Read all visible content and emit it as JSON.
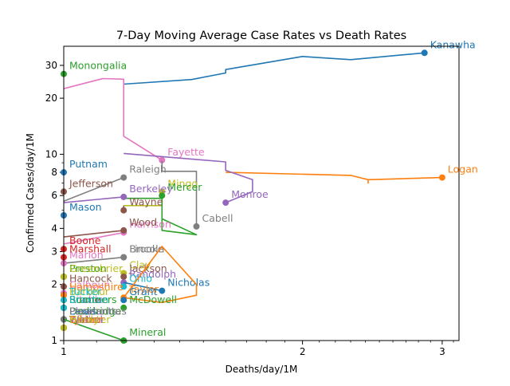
{
  "chart_data": {
    "type": "line",
    "title": "7-Day Moving Average Case Rates vs Death Rates",
    "xlabel": "Deaths/day/1M",
    "ylabel": "Confirmed Cases/day/1M",
    "xscale": "log",
    "yscale": "log",
    "xlim": [
      1,
      3.15
    ],
    "ylim": [
      1,
      38
    ],
    "xticks": [
      1,
      2,
      3
    ],
    "xtick_labels": [
      "1",
      "2",
      "3"
    ],
    "yticks": [
      1,
      2,
      3,
      4,
      6,
      8,
      10,
      20,
      30
    ],
    "ytick_labels": [
      "1",
      "2",
      "3",
      "4",
      "6",
      "8",
      "10",
      "20",
      "30"
    ],
    "grid": false,
    "legend": "none",
    "series": [
      {
        "name": "Kanawha",
        "color": "#1f77b4",
        "points": [
          [
            1.19,
            23.8
          ],
          [
            1.45,
            25.2
          ],
          [
            1.6,
            27.3
          ],
          [
            1.6,
            28.5
          ],
          [
            2.0,
            33.5
          ],
          [
            2.3,
            32.2
          ],
          [
            2.85,
            35.0
          ]
        ]
      },
      {
        "name": "Logan",
        "color": "#ff7f0e",
        "points": [
          [
            1.6,
            8.0
          ],
          [
            2.3,
            7.7
          ],
          [
            2.42,
            7.3
          ],
          [
            2.42,
            7.0
          ],
          [
            2.42,
            7.3
          ],
          [
            3.0,
            7.5
          ]
        ]
      },
      {
        "name": "Monongalia",
        "color": "#2ca02c",
        "points": [
          [
            1.0,
            27.0
          ]
        ]
      },
      {
        "name": "Fayette",
        "color": "#e377c2",
        "points": [
          [
            1.0,
            22.5
          ],
          [
            1.12,
            25.5
          ],
          [
            1.19,
            25.3
          ],
          [
            1.19,
            12.5
          ],
          [
            1.33,
            9.3
          ]
        ]
      },
      {
        "name": "Cabell",
        "color": "#7f7f7f",
        "points": [
          [
            1.33,
            9.2
          ],
          [
            1.33,
            8.1
          ],
          [
            1.47,
            8.1
          ],
          [
            1.47,
            4.1
          ]
        ]
      },
      {
        "name": "Monroe",
        "color": "#9467bd",
        "points": [
          [
            1.19,
            10.1
          ],
          [
            1.6,
            9.1
          ],
          [
            1.6,
            8.2
          ],
          [
            1.73,
            7.3
          ],
          [
            1.73,
            6.3
          ],
          [
            1.6,
            5.5
          ]
        ]
      },
      {
        "name": "Mingo",
        "color": "#bcbd22",
        "points": [
          [
            1.19,
            5.3
          ],
          [
            1.33,
            5.3
          ],
          [
            1.33,
            6.3
          ]
        ]
      },
      {
        "name": "Mercer",
        "color": "#2ca02c",
        "points": [
          [
            1.19,
            5.8
          ],
          [
            1.33,
            5.8
          ],
          [
            1.33,
            4.5
          ],
          [
            1.47,
            3.7
          ],
          [
            1.33,
            3.9
          ],
          [
            1.33,
            6.0
          ]
        ]
      },
      {
        "name": "Putnam",
        "color": "#1f77b4",
        "points": [
          [
            1.0,
            8.0
          ]
        ]
      },
      {
        "name": "Raleigh",
        "color": "#7f7f7f",
        "points": [
          [
            1.0,
            5.6
          ],
          [
            1.19,
            7.5
          ]
        ]
      },
      {
        "name": "Jefferson",
        "color": "#8c564b",
        "points": [
          [
            1.0,
            6.3
          ]
        ]
      },
      {
        "name": "Berkeley",
        "color": "#9467bd",
        "points": [
          [
            1.0,
            5.5
          ],
          [
            1.19,
            5.9
          ]
        ]
      },
      {
        "name": "Wayne",
        "color": "#8c564b",
        "points": [
          [
            1.19,
            5.3
          ],
          [
            1.19,
            5.0
          ]
        ]
      },
      {
        "name": "Mason",
        "color": "#1f77b4",
        "points": [
          [
            1.0,
            4.7
          ]
        ]
      },
      {
        "name": "Harrison",
        "color": "#e377c2",
        "points": [
          [
            1.0,
            3.3
          ],
          [
            1.19,
            3.8
          ]
        ]
      },
      {
        "name": "Wood",
        "color": "#8c564b",
        "points": [
          [
            1.0,
            3.6
          ],
          [
            1.19,
            3.9
          ]
        ]
      },
      {
        "name": "Boone",
        "color": "#d62728",
        "points": [
          [
            1.0,
            3.1
          ]
        ]
      },
      {
        "name": "Brooke",
        "color": "#7f7f7f",
        "points": [
          [
            1.0,
            2.6
          ],
          [
            1.19,
            2.8
          ]
        ]
      },
      {
        "name": "Lincoln",
        "color": "#7f7f7f",
        "points": [
          [
            1.19,
            2.8
          ]
        ]
      },
      {
        "name": "Marion",
        "color": "#e377c2",
        "points": [
          [
            1.0,
            2.6
          ]
        ]
      },
      {
        "name": "Marshall",
        "color": "#d62728",
        "points": [
          [
            1.0,
            2.8
          ]
        ]
      },
      {
        "name": "Clay",
        "color": "#bcbd22",
        "points": [
          [
            1.19,
            2.3
          ]
        ]
      },
      {
        "name": "Jackson",
        "color": "#8c564b",
        "points": [
          [
            1.19,
            2.2
          ]
        ]
      },
      {
        "name": "Preston",
        "color": "#2ca02c",
        "points": [
          [
            1.0,
            2.2
          ]
        ]
      },
      {
        "name": "Greenbrier",
        "color": "#bcbd22",
        "points": [
          [
            1.0,
            2.2
          ]
        ]
      },
      {
        "name": "Randolph",
        "color": "#9467bd",
        "points": [
          [
            1.19,
            2.05
          ]
        ]
      },
      {
        "name": "Nicholas",
        "color": "#1f77b4",
        "points": [
          [
            1.19,
            2.05
          ],
          [
            1.33,
            1.85
          ]
        ]
      },
      {
        "name": "Ohio",
        "color": "#17becf",
        "points": [
          [
            1.19,
            1.95
          ]
        ]
      },
      {
        "name": "Taylor",
        "color": "#ff7f0e",
        "points": [
          [
            1.19,
            1.7
          ],
          [
            1.33,
            3.2
          ],
          [
            1.47,
            2.0
          ],
          [
            1.47,
            1.75
          ],
          [
            1.33,
            1.6
          ],
          [
            1.19,
            1.7
          ]
        ]
      },
      {
        "name": "Hancock",
        "color": "#8c564b",
        "points": [
          [
            1.0,
            1.95
          ]
        ]
      },
      {
        "name": "Calhoun",
        "color": "#e377c2",
        "points": [
          [
            1.0,
            1.8
          ]
        ]
      },
      {
        "name": "Hampshire",
        "color": "#ff7f0e",
        "points": [
          [
            1.0,
            1.75
          ]
        ]
      },
      {
        "name": "Grant",
        "color": "#1f77b4",
        "points": [
          [
            1.19,
            1.65
          ]
        ]
      },
      {
        "name": "Barbour",
        "color": "#bcbd22",
        "points": [
          [
            1.0,
            1.65
          ]
        ]
      },
      {
        "name": "Tucker",
        "color": "#17becf",
        "points": [
          [
            1.0,
            1.65
          ]
        ]
      },
      {
        "name": "McDowell",
        "color": "#2ca02c",
        "points": [
          [
            1.19,
            1.5
          ]
        ]
      },
      {
        "name": "Ritchie",
        "color": "#e377c2",
        "points": [
          [
            1.0,
            1.5
          ]
        ]
      },
      {
        "name": "Roane",
        "color": "#8c564b",
        "points": [
          [
            1.0,
            1.5
          ]
        ]
      },
      {
        "name": "Summers",
        "color": "#2ca02c",
        "points": [
          [
            1.0,
            1.5
          ]
        ]
      },
      {
        "name": "Braxton",
        "color": "#17becf",
        "points": [
          [
            1.0,
            1.5
          ]
        ]
      },
      {
        "name": "Pleasants",
        "color": "#9467bd",
        "points": [
          [
            1.0,
            1.3
          ]
        ]
      },
      {
        "name": "Doddridge",
        "color": "#2ca02c",
        "points": [
          [
            1.0,
            1.3
          ]
        ]
      },
      {
        "name": "Lewis",
        "color": "#1f77b4",
        "points": [
          [
            1.0,
            1.3
          ]
        ]
      },
      {
        "name": "Pocahontas",
        "color": "#7f7f7f",
        "points": [
          [
            1.0,
            1.3
          ]
        ]
      },
      {
        "name": "Mineral",
        "color": "#2ca02c",
        "points": [
          [
            1.0,
            1.3
          ],
          [
            1.19,
            1.0
          ]
        ]
      },
      {
        "name": "Tyler",
        "color": "#ff7f0e",
        "points": [
          [
            1.0,
            1.17
          ]
        ]
      },
      {
        "name": "Wirt",
        "color": "#d62728",
        "points": [
          [
            1.0,
            1.17
          ]
        ]
      },
      {
        "name": "Upshur",
        "color": "#e377c2",
        "points": [
          [
            1.0,
            1.17
          ]
        ]
      },
      {
        "name": "Webster",
        "color": "#bcbd22",
        "points": [
          [
            1.0,
            1.17
          ]
        ]
      },
      {
        "name": "Wetzel",
        "color": "#9467bd",
        "points": [
          [
            1.0,
            1.17
          ]
        ]
      },
      {
        "name": "Gilmer",
        "color": "#ff7f0e",
        "points": [
          [
            1.0,
            1.17
          ]
        ]
      },
      {
        "name": "Hardy",
        "color": "#bcbd22",
        "points": [
          [
            1.0,
            1.17
          ]
        ]
      }
    ]
  }
}
